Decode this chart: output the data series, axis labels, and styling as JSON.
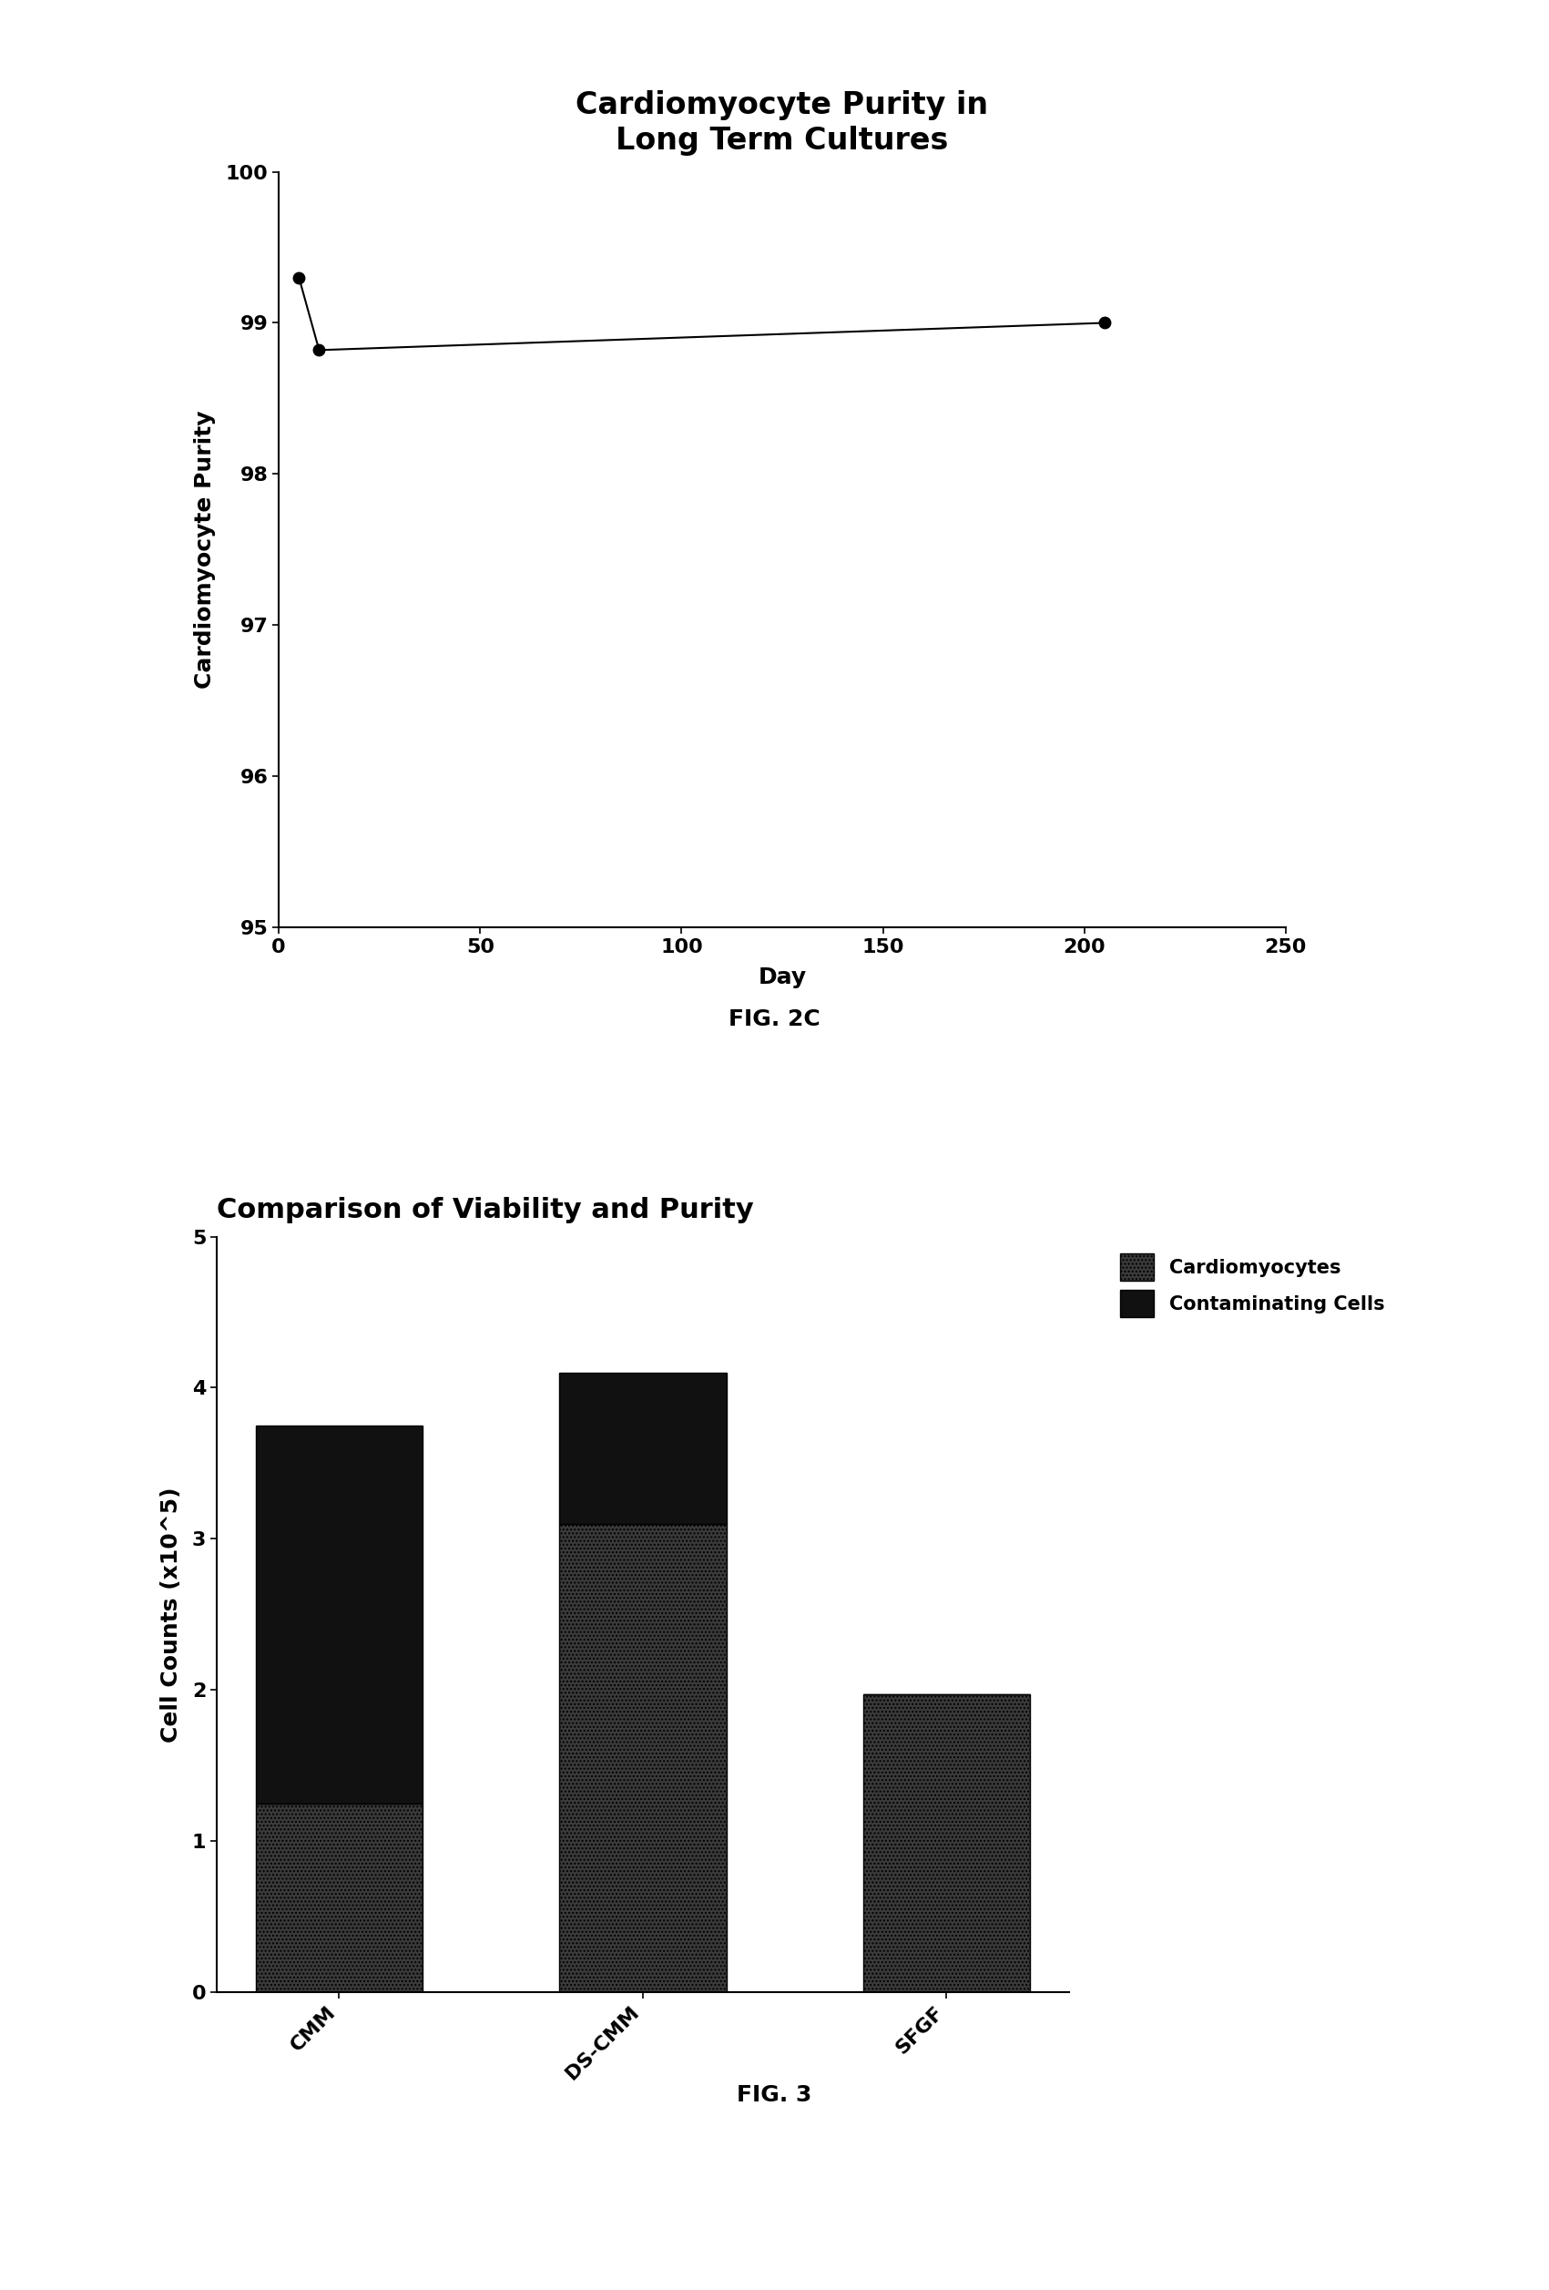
{
  "fig2c": {
    "title": "Cardiomyocyte Purity in\nLong Term Cultures",
    "xlabel": "Day",
    "ylabel": "Cardiomyocyte Purity",
    "x": [
      5,
      10,
      205
    ],
    "y": [
      99.3,
      98.82,
      99.0
    ],
    "xlim": [
      0,
      250
    ],
    "ylim": [
      95,
      100
    ],
    "xticks": [
      0,
      50,
      100,
      150,
      200,
      250
    ],
    "yticks": [
      95,
      96,
      97,
      98,
      99,
      100
    ],
    "marker": "o",
    "markersize": 9,
    "linecolor": "#000000",
    "markercolor": "#000000",
    "linewidth": 1.5,
    "title_fontsize": 24,
    "label_fontsize": 18,
    "tick_fontsize": 16
  },
  "fig3": {
    "title": "Comparison of Viability and Purity",
    "ylabel": "Cell Counts (x10^5)",
    "categories": [
      "CMM",
      "DS-CMM",
      "SFGF"
    ],
    "cardio_values": [
      1.25,
      3.1,
      1.97
    ],
    "contam_values": [
      2.5,
      1.0,
      0.0
    ],
    "ylim": [
      0,
      5
    ],
    "yticks": [
      0,
      1,
      2,
      3,
      4,
      5
    ],
    "cardio_color": "#3a3a3a",
    "contam_color": "#111111",
    "cardio_hatch": "....",
    "contam_hatch": "",
    "legend_labels": [
      "Cardiomyocytes",
      "Contaminating Cells"
    ],
    "title_fontsize": 22,
    "label_fontsize": 18,
    "tick_fontsize": 16,
    "bar_width": 0.55
  },
  "fig2c_label": "FIG. 2C",
  "fig3_label": "FIG. 3",
  "background_color": "#ffffff"
}
